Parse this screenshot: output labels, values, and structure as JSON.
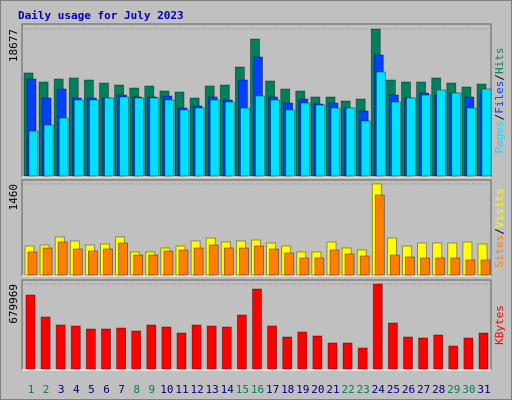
{
  "title": "Daily usage for July 2023",
  "legend_separator": "/",
  "chart_data": [
    {
      "type": "bar",
      "ylim": [
        0,
        18677
      ],
      "yticks": [
        18677
      ],
      "series": [
        {
          "name": "Hits",
          "color": "#00805c",
          "values": [
            13087,
            11943,
            12324,
            12451,
            12197,
            11816,
            11562,
            11181,
            11435,
            10800,
            10672,
            9910,
            11435,
            11562,
            13849,
            17406,
            12070,
            11054,
            10800,
            10037,
            10037,
            9529,
            9783,
            18677,
            12197,
            11943,
            11943,
            12451,
            11816,
            11308,
            11689
          ]
        },
        {
          "name": "Files",
          "color": "#0040ff",
          "values": [
            12324,
            9910,
            11054,
            9910,
            9910,
            9910,
            10291,
            10037,
            10037,
            10164,
            8639,
            8894,
            10037,
            9656,
            12197,
            15119,
            10037,
            9275,
            9783,
            9148,
            9275,
            8639,
            8258,
            15373,
            10291,
            9910,
            10545,
            10291,
            10545,
            10037,
            10672
          ]
        },
        {
          "name": "Pages",
          "color": "#00e0ff",
          "values": [
            5717,
            6480,
            7369,
            9656,
            9656,
            9910,
            10037,
            9910,
            9910,
            9656,
            8385,
            8639,
            9656,
            9402,
            8639,
            10164,
            9656,
            8385,
            9275,
            9021,
            8639,
            8639,
            6988,
            13213,
            9402,
            9910,
            10291,
            10926,
            10545,
            8639,
            11053
          ]
        }
      ]
    },
    {
      "type": "bar",
      "ylim": [
        0,
        1460
      ],
      "yticks": [
        1460
      ],
      "series": [
        {
          "name": "Visits",
          "color": "#ffff00",
          "values": [
            465,
            481,
            610,
            545,
            481,
            497,
            610,
            369,
            369,
            433,
            465,
            545,
            593,
            529,
            545,
            561,
            513,
            465,
            369,
            369,
            529,
            433,
            401,
            1460,
            593,
            465,
            513,
            513,
            513,
            529,
            497
          ]
        },
        {
          "name": "Sites",
          "color": "#ff8000",
          "values": [
            369,
            433,
            529,
            417,
            385,
            417,
            513,
            321,
            321,
            385,
            401,
            433,
            481,
            433,
            433,
            465,
            417,
            353,
            273,
            273,
            401,
            337,
            305,
            1283,
            321,
            289,
            273,
            273,
            273,
            241,
            241
          ]
        }
      ]
    },
    {
      "type": "bar",
      "ylim": [
        0,
        679969
      ],
      "yticks": [
        679969
      ],
      "categories": [
        "1",
        "2",
        "3",
        "4",
        "5",
        "6",
        "7",
        "8",
        "9",
        "10",
        "11",
        "12",
        "13",
        "14",
        "15",
        "16",
        "17",
        "18",
        "19",
        "20",
        "21",
        "22",
        "23",
        "24",
        "25",
        "26",
        "27",
        "28",
        "29",
        "30",
        "31"
      ],
      "category_colors": [
        "#00805c",
        "#00805c",
        "#000080",
        "#000080",
        "#000080",
        "#000080",
        "#000080",
        "#00805c",
        "#00805c",
        "#000080",
        "#000080",
        "#000080",
        "#000080",
        "#000080",
        "#00805c",
        "#00805c",
        "#000080",
        "#000080",
        "#000080",
        "#000080",
        "#000080",
        "#00805c",
        "#00805c",
        "#000080",
        "#000080",
        "#000080",
        "#000080",
        "#000080",
        "#00805c",
        "#00805c",
        "#000080"
      ],
      "series": [
        {
          "name": "KBytes",
          "color": "#ff0000",
          "values": [
            592000,
            416000,
            352000,
            344000,
            320000,
            320000,
            328000,
            304000,
            352000,
            336000,
            288000,
            352000,
            344000,
            336000,
            432000,
            640000,
            344000,
            256000,
            296000,
            264000,
            208000,
            208000,
            168000,
            679969,
            368000,
            256000,
            248000,
            272000,
            184000,
            248000,
            288000
          ]
        }
      ]
    }
  ]
}
